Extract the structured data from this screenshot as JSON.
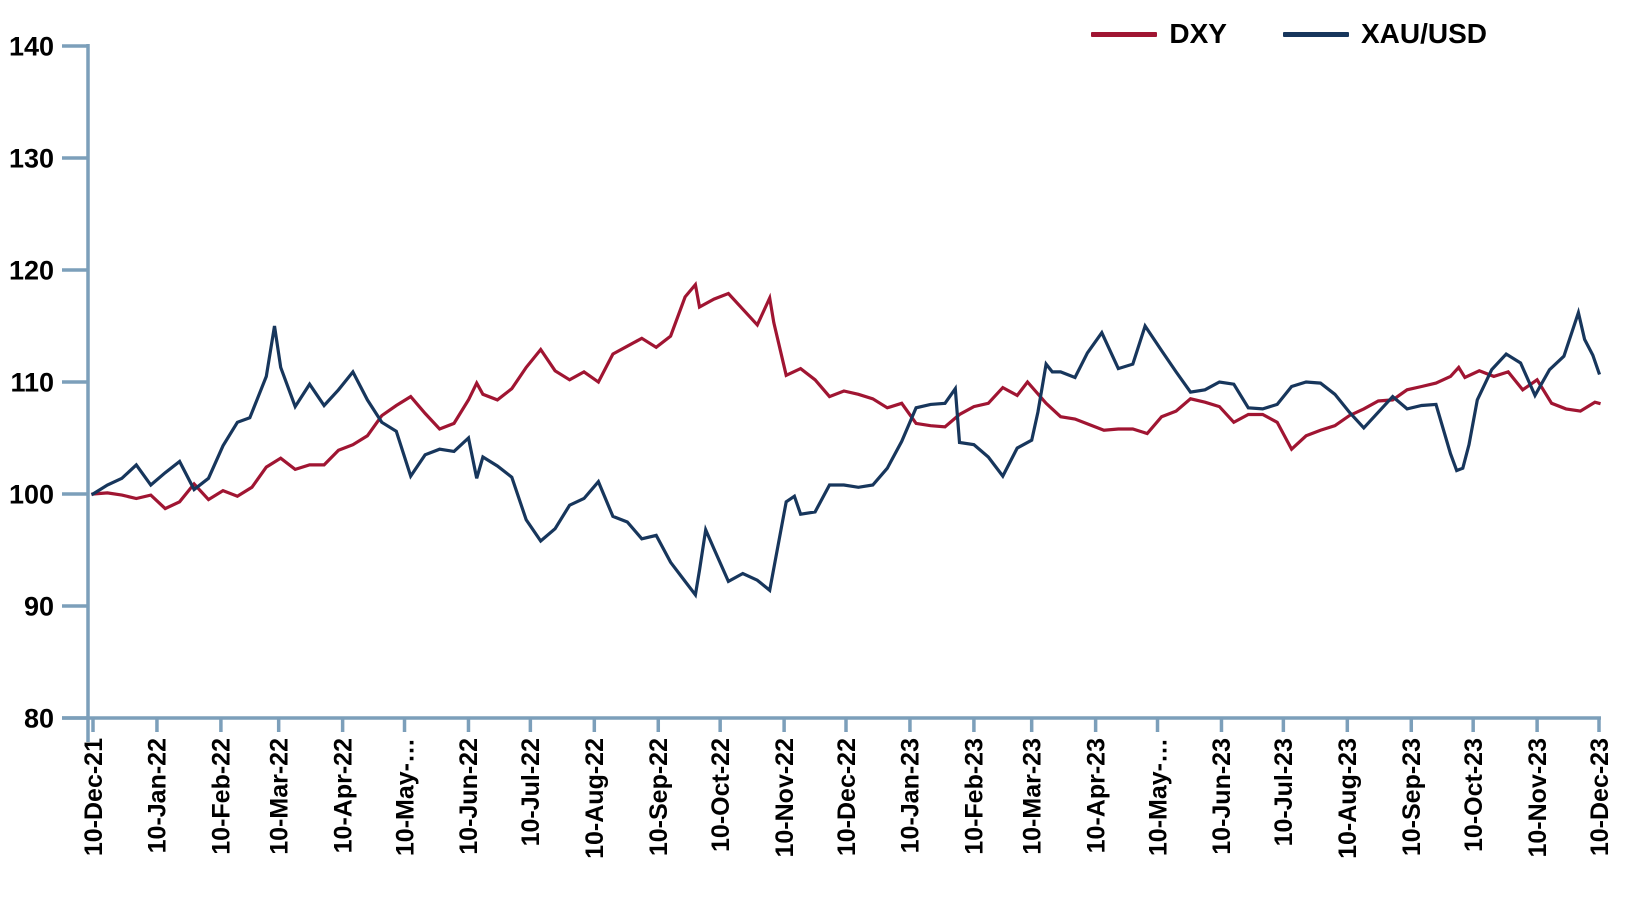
{
  "legend": {
    "items": [
      {
        "label": "DXY",
        "color": "#A01532"
      },
      {
        "label": "XAU/USD",
        "color": "#17365C"
      }
    ]
  },
  "axes": {
    "axis_color": "#7C9FBA",
    "y_ticks": [
      140,
      130,
      120,
      110,
      100,
      90,
      80
    ],
    "x_tick_labels": [
      "10-Dec-21",
      "10-Jan-22",
      "10-Feb-22",
      "10-Mar-22",
      "10-Apr-22",
      "10-May-…",
      "10-Jun-22",
      "10-Jul-22",
      "10-Aug-22",
      "10-Sep-22",
      "10-Oct-22",
      "10-Nov-22",
      "10-Dec-22",
      "10-Jan-23",
      "10-Feb-23",
      "10-Mar-23",
      "10-Apr-23",
      "10-May-…",
      "10-Jun-23",
      "10-Jul-23",
      "10-Aug-23",
      "10-Sep-23",
      "10-Oct-23",
      "10-Nov-23",
      "10-Dec-23"
    ]
  },
  "chart_data": {
    "type": "line",
    "title": "",
    "xlabel": "",
    "ylabel": "",
    "ylim": [
      80,
      140
    ],
    "x_unit": "days since 10-Dec-21",
    "x_range": [
      0,
      730
    ],
    "grid": false,
    "legend_position": "top-right",
    "x_tick_days": [
      0,
      31,
      62,
      90,
      121,
      151,
      182,
      212,
      243,
      274,
      304,
      335,
      365,
      396,
      427,
      455,
      486,
      516,
      547,
      577,
      608,
      639,
      669,
      700,
      730
    ],
    "series": [
      {
        "name": "DXY",
        "color": "#A01532",
        "points": [
          [
            0,
            100
          ],
          [
            7,
            100.1
          ],
          [
            14,
            99.9
          ],
          [
            21,
            99.6
          ],
          [
            28,
            99.9
          ],
          [
            35,
            98.7
          ],
          [
            42,
            99.3
          ],
          [
            49,
            100.9
          ],
          [
            56,
            99.5
          ],
          [
            63,
            100.3
          ],
          [
            70,
            99.8
          ],
          [
            77,
            100.6
          ],
          [
            84,
            102.4
          ],
          [
            91,
            103.2
          ],
          [
            98,
            102.2
          ],
          [
            105,
            102.6
          ],
          [
            112,
            102.6
          ],
          [
            119,
            103.9
          ],
          [
            126,
            104.4
          ],
          [
            133,
            105.2
          ],
          [
            140,
            107.0
          ],
          [
            147,
            107.9
          ],
          [
            154,
            108.7
          ],
          [
            161,
            107.2
          ],
          [
            168,
            105.8
          ],
          [
            175,
            106.3
          ],
          [
            182,
            108.4
          ],
          [
            186,
            109.9
          ],
          [
            189,
            108.9
          ],
          [
            196,
            108.4
          ],
          [
            203,
            109.4
          ],
          [
            210,
            111.3
          ],
          [
            217,
            112.9
          ],
          [
            224,
            111.0
          ],
          [
            231,
            110.2
          ],
          [
            238,
            110.9
          ],
          [
            245,
            110.0
          ],
          [
            252,
            112.5
          ],
          [
            259,
            113.2
          ],
          [
            266,
            113.9
          ],
          [
            273,
            113.1
          ],
          [
            280,
            114.1
          ],
          [
            287,
            117.6
          ],
          [
            292,
            118.7
          ],
          [
            294,
            116.7
          ],
          [
            301,
            117.4
          ],
          [
            308,
            117.9
          ],
          [
            315,
            116.5
          ],
          [
            322,
            115.1
          ],
          [
            328,
            117.5
          ],
          [
            330,
            115.3
          ],
          [
            336,
            110.6
          ],
          [
            343,
            111.2
          ],
          [
            350,
            110.2
          ],
          [
            357,
            108.7
          ],
          [
            364,
            109.2
          ],
          [
            371,
            108.9
          ],
          [
            378,
            108.5
          ],
          [
            385,
            107.7
          ],
          [
            392,
            108.1
          ],
          [
            399,
            106.3
          ],
          [
            406,
            106.1
          ],
          [
            413,
            106.0
          ],
          [
            420,
            107.1
          ],
          [
            427,
            107.8
          ],
          [
            434,
            108.1
          ],
          [
            441,
            109.5
          ],
          [
            448,
            108.8
          ],
          [
            453,
            110.0
          ],
          [
            462,
            108.1
          ],
          [
            469,
            106.9
          ],
          [
            476,
            106.7
          ],
          [
            483,
            106.2
          ],
          [
            490,
            105.7
          ],
          [
            497,
            105.8
          ],
          [
            504,
            105.8
          ],
          [
            511,
            105.4
          ],
          [
            518,
            106.9
          ],
          [
            525,
            107.4
          ],
          [
            532,
            108.5
          ],
          [
            539,
            108.2
          ],
          [
            546,
            107.8
          ],
          [
            553,
            106.4
          ],
          [
            560,
            107.1
          ],
          [
            567,
            107.1
          ],
          [
            574,
            106.4
          ],
          [
            581,
            104.0
          ],
          [
            588,
            105.2
          ],
          [
            595,
            105.7
          ],
          [
            602,
            106.1
          ],
          [
            609,
            107.0
          ],
          [
            616,
            107.6
          ],
          [
            623,
            108.3
          ],
          [
            630,
            108.4
          ],
          [
            637,
            109.3
          ],
          [
            644,
            109.6
          ],
          [
            651,
            109.9
          ],
          [
            658,
            110.5
          ],
          [
            662,
            111.3
          ],
          [
            665,
            110.4
          ],
          [
            672,
            111.0
          ],
          [
            679,
            110.5
          ],
          [
            686,
            110.9
          ],
          [
            693,
            109.3
          ],
          [
            700,
            110.2
          ],
          [
            707,
            108.1
          ],
          [
            714,
            107.6
          ],
          [
            721,
            107.4
          ],
          [
            728,
            108.2
          ],
          [
            730,
            108.1
          ]
        ]
      },
      {
        "name": "XAU/USD",
        "color": "#17365C",
        "points": [
          [
            0,
            100
          ],
          [
            7,
            100.8
          ],
          [
            14,
            101.4
          ],
          [
            21,
            102.6
          ],
          [
            28,
            100.8
          ],
          [
            35,
            101.9
          ],
          [
            42,
            102.9
          ],
          [
            49,
            100.4
          ],
          [
            56,
            101.4
          ],
          [
            63,
            104.3
          ],
          [
            70,
            106.4
          ],
          [
            76,
            106.8
          ],
          [
            84,
            110.5
          ],
          [
            88,
            115.0
          ],
          [
            91,
            111.3
          ],
          [
            98,
            107.8
          ],
          [
            105,
            109.8
          ],
          [
            112,
            107.9
          ],
          [
            119,
            109.3
          ],
          [
            126,
            110.9
          ],
          [
            133,
            108.4
          ],
          [
            140,
            106.4
          ],
          [
            147,
            105.6
          ],
          [
            154,
            101.6
          ],
          [
            161,
            103.5
          ],
          [
            168,
            104.0
          ],
          [
            175,
            103.8
          ],
          [
            182,
            105.0
          ],
          [
            186,
            101.4
          ],
          [
            189,
            103.3
          ],
          [
            196,
            102.5
          ],
          [
            203,
            101.5
          ],
          [
            210,
            97.7
          ],
          [
            217,
            95.8
          ],
          [
            224,
            96.9
          ],
          [
            231,
            99.0
          ],
          [
            238,
            99.6
          ],
          [
            245,
            101.1
          ],
          [
            252,
            98.0
          ],
          [
            259,
            97.5
          ],
          [
            266,
            96.0
          ],
          [
            273,
            96.3
          ],
          [
            280,
            93.9
          ],
          [
            287,
            92.2
          ],
          [
            292,
            91.0
          ],
          [
            294,
            93.2
          ],
          [
            297,
            96.8
          ],
          [
            301,
            95.1
          ],
          [
            308,
            92.2
          ],
          [
            315,
            92.9
          ],
          [
            322,
            92.3
          ],
          [
            328,
            91.4
          ],
          [
            336,
            99.3
          ],
          [
            340,
            99.8
          ],
          [
            343,
            98.2
          ],
          [
            350,
            98.4
          ],
          [
            357,
            100.8
          ],
          [
            364,
            100.8
          ],
          [
            371,
            100.6
          ],
          [
            378,
            100.8
          ],
          [
            385,
            102.3
          ],
          [
            392,
            104.7
          ],
          [
            399,
            107.7
          ],
          [
            406,
            108.0
          ],
          [
            413,
            108.1
          ],
          [
            418,
            109.4
          ],
          [
            420,
            104.6
          ],
          [
            427,
            104.4
          ],
          [
            434,
            103.3
          ],
          [
            441,
            101.6
          ],
          [
            448,
            104.1
          ],
          [
            455,
            104.8
          ],
          [
            458,
            107.3
          ],
          [
            462,
            111.6
          ],
          [
            465,
            110.9
          ],
          [
            469,
            110.9
          ],
          [
            476,
            110.4
          ],
          [
            482,
            112.6
          ],
          [
            489,
            114.4
          ],
          [
            497,
            111.2
          ],
          [
            504,
            111.6
          ],
          [
            510,
            115.0
          ],
          [
            518,
            112.8
          ],
          [
            525,
            110.9
          ],
          [
            532,
            109.1
          ],
          [
            539,
            109.3
          ],
          [
            546,
            110.0
          ],
          [
            553,
            109.8
          ],
          [
            560,
            107.7
          ],
          [
            567,
            107.6
          ],
          [
            574,
            108.0
          ],
          [
            581,
            109.6
          ],
          [
            588,
            110.0
          ],
          [
            595,
            109.9
          ],
          [
            602,
            108.9
          ],
          [
            609,
            107.3
          ],
          [
            616,
            105.9
          ],
          [
            623,
            107.3
          ],
          [
            630,
            108.7
          ],
          [
            637,
            107.6
          ],
          [
            644,
            107.9
          ],
          [
            651,
            108.0
          ],
          [
            658,
            103.6
          ],
          [
            661,
            102.1
          ],
          [
            664,
            102.3
          ],
          [
            667,
            104.4
          ],
          [
            671,
            108.4
          ],
          [
            678,
            111.1
          ],
          [
            685,
            112.5
          ],
          [
            692,
            111.7
          ],
          [
            699,
            108.8
          ],
          [
            706,
            111.1
          ],
          [
            713,
            112.3
          ],
          [
            720,
            116.2
          ],
          [
            723,
            113.8
          ],
          [
            727,
            112.4
          ],
          [
            730,
            110.8
          ]
        ]
      }
    ]
  }
}
